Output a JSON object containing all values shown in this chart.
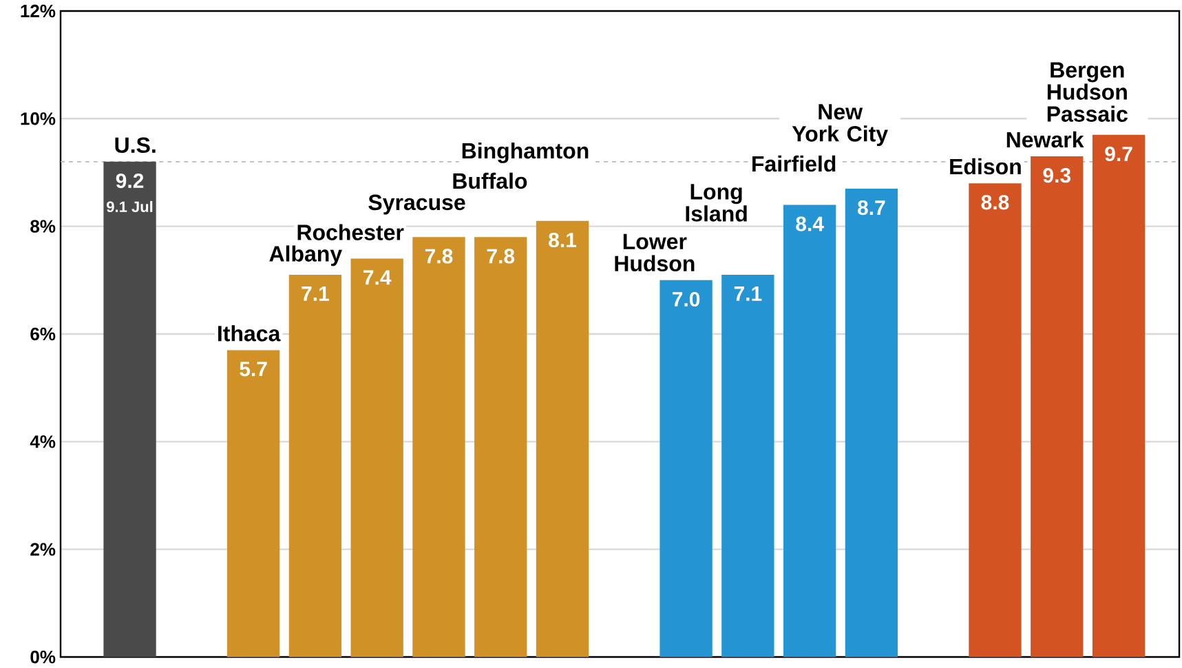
{
  "chart_data": {
    "type": "bar",
    "categories": [
      "U.S.",
      null,
      "Ithaca",
      "Albany",
      "Rochester",
      "Syracuse",
      "Buffalo",
      "Binghamton",
      null,
      "Lower Hudson",
      "Long Island",
      "Fairfield",
      "New York City",
      null,
      "Edison",
      "Newark",
      "Bergen Hudson Passaic"
    ],
    "values": [
      9.2,
      null,
      5.7,
      7.1,
      7.4,
      7.8,
      7.8,
      8.1,
      null,
      7.0,
      7.1,
      8.4,
      8.7,
      null,
      8.8,
      9.3,
      9.7
    ],
    "value_labels": [
      "9.2",
      null,
      "5.7",
      "7.1",
      "7.4",
      "7.8",
      "7.8",
      "8.1",
      null,
      "7.0",
      "7.1",
      "8.4",
      "8.7",
      null,
      "8.8",
      "9.3",
      "9.7"
    ],
    "colors": [
      "#4a4a4a",
      null,
      "#d09226",
      "#d09226",
      "#d09226",
      "#d09226",
      "#d09226",
      "#d09226",
      null,
      "#2494d2",
      "#2494d2",
      "#2494d2",
      "#2494d2",
      null,
      "#d35422",
      "#d35422",
      "#d35422"
    ],
    "annotations": [
      "9.1 Jul"
    ],
    "ref_lines": [
      {
        "axis": "y",
        "value": 9.2,
        "color": "#bbbbbb",
        "line_style": "dashed"
      }
    ],
    "ylim": [
      0,
      12
    ],
    "yticks": [
      {
        "value": 0,
        "label": "0%"
      },
      {
        "value": 2,
        "label": "2%"
      },
      {
        "value": 4,
        "label": "4%"
      },
      {
        "value": 6,
        "label": "6%"
      },
      {
        "value": 8,
        "label": "8%"
      },
      {
        "value": 10,
        "label": "10%"
      },
      {
        "value": 12,
        "label": "12%"
      }
    ],
    "grid": "y"
  }
}
